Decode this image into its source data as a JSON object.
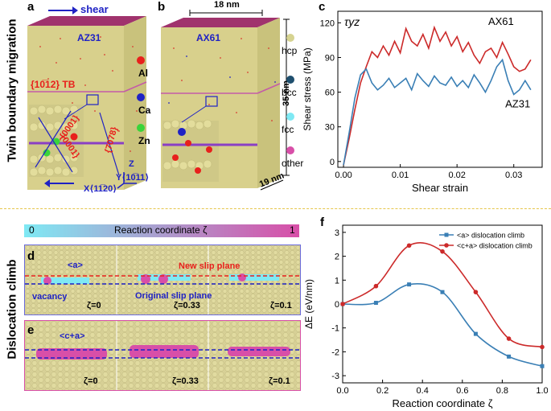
{
  "side_labels": {
    "top": "Twin boundary migration",
    "bottom": "Dislocation climb"
  },
  "panel_a": {
    "label": "a",
    "shear": "shear",
    "material": "AZ31",
    "tb_label": "{10̅12} TB",
    "plane1": "{0001}",
    "plane2": "{0001}",
    "plane3": "{7078}",
    "axis_z": "Z",
    "axis_y": "Y⟨10̅11⟩",
    "axis_x": "X⟨11̅20⟩"
  },
  "legend_atoms": [
    {
      "label": "Al",
      "color": "#e8201c"
    },
    {
      "label": "Ca",
      "color": "#1f22c4"
    },
    {
      "label": "Zn",
      "color": "#3ad43a"
    }
  ],
  "panel_b": {
    "label": "b",
    "material": "AX61",
    "dim_width": "18 nm",
    "dim_height": "35 nm",
    "dim_depth": "19 nm"
  },
  "legend_structure": [
    {
      "label": "hcp",
      "color": "#d6d391"
    },
    {
      "label": "bcc",
      "color": "#1f4f6e"
    },
    {
      "label": "fcc",
      "color": "#7fe9f4"
    },
    {
      "label": "other",
      "color": "#d84fa8"
    }
  ],
  "panel_d": {
    "label": "d",
    "burgers": "<a>",
    "new_plane": "New slip plane",
    "orig_plane": "Original slip plane",
    "vacancy": "vacancy",
    "zetas": [
      "ζ=0",
      "ζ=0.33",
      "ζ=0.1"
    ]
  },
  "panel_e": {
    "label": "e",
    "burgers": "<c+a>",
    "zetas": [
      "ζ=0",
      "ζ=0.33",
      "ζ=0.1"
    ]
  },
  "colorbar": {
    "left": "0",
    "title": "Reaction coordinate ζ",
    "right": "1"
  },
  "chart_data": [
    {
      "panel": "c",
      "type": "line",
      "title": "τyz",
      "xlabel": "Shear strain",
      "ylabel": "Shear stress (MPa)",
      "xlim": [
        -0.001,
        0.035
      ],
      "ylim": [
        -5,
        130
      ],
      "xticks": [
        0.0,
        0.01,
        0.02,
        0.03
      ],
      "xtick_labels": [
        "0.00",
        "0.01",
        "0.02",
        "0.03"
      ],
      "yticks": [
        0,
        30,
        60,
        90,
        120
      ],
      "series": [
        {
          "name": "AX61",
          "color": "#cc2a2a",
          "x": [
            0.0,
            0.001,
            0.002,
            0.003,
            0.004,
            0.005,
            0.006,
            0.007,
            0.008,
            0.009,
            0.01,
            0.011,
            0.012,
            0.013,
            0.014,
            0.015,
            0.016,
            0.017,
            0.018,
            0.019,
            0.02,
            0.021,
            0.022,
            0.023,
            0.024,
            0.025,
            0.026,
            0.027,
            0.028,
            0.029,
            0.03,
            0.031,
            0.032,
            0.033
          ],
          "y": [
            -3,
            20,
            45,
            68,
            82,
            95,
            90,
            100,
            92,
            104,
            94,
            115,
            104,
            100,
            110,
            98,
            116,
            104,
            112,
            100,
            108,
            95,
            103,
            92,
            85,
            95,
            98,
            90,
            103,
            93,
            82,
            78,
            80,
            88
          ]
        },
        {
          "name": "AZ31",
          "color": "#3a7fb5",
          "x": [
            0.0,
            0.001,
            0.002,
            0.003,
            0.004,
            0.005,
            0.006,
            0.007,
            0.008,
            0.009,
            0.01,
            0.011,
            0.012,
            0.013,
            0.014,
            0.015,
            0.016,
            0.017,
            0.018,
            0.019,
            0.02,
            0.021,
            0.022,
            0.023,
            0.024,
            0.025,
            0.026,
            0.027,
            0.028,
            0.029,
            0.03,
            0.031,
            0.032,
            0.033
          ],
          "y": [
            -3,
            25,
            55,
            75,
            80,
            68,
            62,
            66,
            72,
            64,
            68,
            72,
            62,
            76,
            70,
            65,
            74,
            68,
            66,
            73,
            65,
            70,
            64,
            75,
            68,
            60,
            70,
            82,
            88,
            70,
            58,
            62,
            70,
            62
          ]
        }
      ],
      "annotations": [
        "AX61",
        "AZ31"
      ]
    },
    {
      "panel": "f",
      "type": "line",
      "xlabel": "Reaction coordinate ζ",
      "ylabel": "ΔE (eV/nm)",
      "xlim": [
        0.0,
        1.0
      ],
      "ylim": [
        -3.3,
        3.3
      ],
      "xticks": [
        0.0,
        0.2,
        0.4,
        0.6,
        0.8,
        1.0
      ],
      "xtick_labels": [
        "0.0",
        "0.2",
        "0.4",
        "0.6",
        "0.8",
        "1.0"
      ],
      "yticks": [
        -3,
        -2,
        -1,
        0,
        1,
        2,
        3
      ],
      "series": [
        {
          "name": "<a> dislocation climb",
          "color": "#3a7fb5",
          "marker": "square",
          "x": [
            0.0,
            0.167,
            0.333,
            0.5,
            0.667,
            0.833,
            1.0
          ],
          "y": [
            0.0,
            0.05,
            0.82,
            0.5,
            -1.25,
            -2.2,
            -2.6
          ]
        },
        {
          "name": "<c+a> dislocation climb",
          "color": "#cc2a2a",
          "marker": "circle",
          "x": [
            0.0,
            0.167,
            0.333,
            0.5,
            0.667,
            0.833,
            1.0
          ],
          "y": [
            0.0,
            0.75,
            2.45,
            2.2,
            0.5,
            -1.45,
            -1.8
          ]
        }
      ]
    }
  ]
}
